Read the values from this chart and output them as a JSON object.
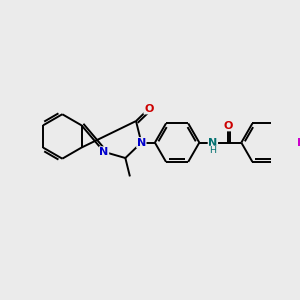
{
  "bg_color": "#ebebeb",
  "bond_color": "#000000",
  "N_color": "#0000cc",
  "O_color": "#cc0000",
  "F_color": "#cc00cc",
  "NH_color": "#007070",
  "line_width": 1.4,
  "figsize": [
    3.0,
    3.0
  ],
  "dpi": 100,
  "xlim": [
    0,
    10
  ],
  "ylim": [
    0,
    10
  ],
  "font_size": 8.0
}
